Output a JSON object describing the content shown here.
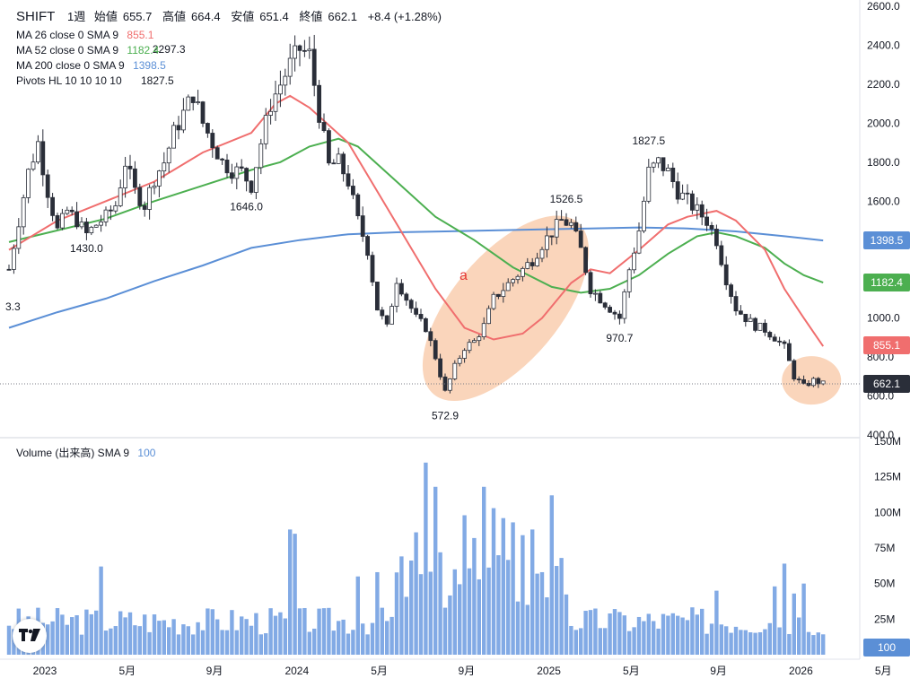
{
  "header": {
    "symbol": "SHIFT",
    "interval": "1週",
    "open_label": "始値",
    "open": "655.7",
    "high_label": "高値",
    "high": "664.4",
    "low_label": "安値",
    "low": "651.4",
    "close_label": "終値",
    "close": "662.1",
    "change": "+8.4 (+1.28%)"
  },
  "indicators": [
    {
      "label": "MA 26 close 0 SMA 9",
      "value": "855.1",
      "color": "#f06e6e"
    },
    {
      "label": "MA 52 close 0 SMA 9",
      "value": "1182.4",
      "color": "#4caf50"
    },
    {
      "label": "MA 200 close 0 SMA 9",
      "value": "1398.5",
      "color": "#5b8fd6"
    },
    {
      "label": "Pivots HL 10 10 10 10",
      "value": "1827.5",
      "color": "#131722"
    }
  ],
  "volume_legend": {
    "label": "Volume (出来高) SMA 9",
    "value": "100",
    "color": "#5b8fd6"
  },
  "badges": [
    {
      "value": "1398.5",
      "color": "#5b8fd6",
      "price": 1398.5
    },
    {
      "value": "1182.4",
      "color": "#4caf50",
      "price": 1182.4
    },
    {
      "value": "855.1",
      "color": "#f06e6e",
      "price": 855.1
    },
    {
      "value": "662.1",
      "color": "#2a2e39",
      "price": 662.1
    }
  ],
  "volume_badge": {
    "value": "100",
    "color": "#5b8fd6"
  },
  "chart_data": {
    "type": "candlestick",
    "price_axis": {
      "ticks": [
        "2600.0",
        "2400.0",
        "2200.0",
        "2000.0",
        "1800.0",
        "1600.0",
        "1400.0",
        "1200.0",
        "1000.0",
        "800.0",
        "600.0",
        "400.0"
      ],
      "range": [
        400,
        2600
      ]
    },
    "volume_axis": {
      "ticks": [
        "150M",
        "125M",
        "100M",
        "75M",
        "50M",
        "25M"
      ],
      "range": [
        0,
        150
      ]
    },
    "time_axis": {
      "labels": [
        "2023",
        "5月",
        "9月",
        "2024",
        "5月",
        "9月",
        "2025",
        "5月",
        "9月",
        "2026",
        "5月"
      ],
      "label_weeks": [
        0,
        17,
        35,
        52,
        69,
        87,
        104,
        121,
        139,
        156,
        173
      ]
    },
    "pivot_labels": [
      {
        "text": "2297.3",
        "week": 33,
        "price": 2297.3,
        "pos": "above"
      },
      {
        "text": "1430.0",
        "week": 16,
        "price": 1430.0,
        "pos": "below"
      },
      {
        "text": "1646.0",
        "week": 49,
        "price": 1646.0,
        "pos": "below"
      },
      {
        "text": "3.3",
        "week": -1,
        "price": 1300,
        "pos": "below"
      },
      {
        "text": "1526.5",
        "week": 115,
        "price": 1526.5,
        "pos": "above"
      },
      {
        "text": "572.9",
        "week": 90,
        "price": 572.9,
        "pos": "below"
      },
      {
        "text": "970.7",
        "week": 126,
        "price": 970.7,
        "pos": "below"
      },
      {
        "text": "1827.5",
        "week": 132,
        "price": 1827.5,
        "pos": "above"
      }
    ],
    "annotation_label": "a",
    "close_path": [
      [
        0,
        1250
      ],
      [
        2,
        1500
      ],
      [
        4,
        1750
      ],
      [
        6,
        1900
      ],
      [
        8,
        1650
      ],
      [
        10,
        1450
      ],
      [
        12,
        1550
      ],
      [
        14,
        1500
      ],
      [
        16,
        1430
      ],
      [
        18,
        1480
      ],
      [
        20,
        1520
      ],
      [
        22,
        1580
      ],
      [
        24,
        1800
      ],
      [
        26,
        1650
      ],
      [
        28,
        1580
      ],
      [
        30,
        1720
      ],
      [
        32,
        1800
      ],
      [
        34,
        1950
      ],
      [
        36,
        2050
      ],
      [
        38,
        2150
      ],
      [
        40,
        2000
      ],
      [
        42,
        1900
      ],
      [
        44,
        1800
      ],
      [
        46,
        1760
      ],
      [
        48,
        1750
      ],
      [
        50,
        1680
      ],
      [
        52,
        1900
      ],
      [
        54,
        2100
      ],
      [
        56,
        2200
      ],
      [
        58,
        2300
      ],
      [
        60,
        2380
      ],
      [
        62,
        2350
      ],
      [
        64,
        2050
      ],
      [
        66,
        1780
      ],
      [
        68,
        1800
      ],
      [
        70,
        1700
      ],
      [
        72,
        1500
      ],
      [
        74,
        1350
      ],
      [
        76,
        1050
      ],
      [
        78,
        950
      ],
      [
        80,
        1200
      ],
      [
        82,
        1100
      ],
      [
        84,
        1000
      ],
      [
        86,
        950
      ],
      [
        88,
        800
      ],
      [
        90,
        620
      ],
      [
        92,
        750
      ],
      [
        94,
        850
      ],
      [
        96,
        880
      ],
      [
        98,
        960
      ],
      [
        100,
        1100
      ],
      [
        102,
        1150
      ],
      [
        104,
        1200
      ],
      [
        106,
        1250
      ],
      [
        108,
        1300
      ],
      [
        110,
        1380
      ],
      [
        112,
        1440
      ],
      [
        114,
        1500
      ],
      [
        116,
        1480
      ],
      [
        118,
        1350
      ],
      [
        120,
        1150
      ],
      [
        122,
        1100
      ],
      [
        124,
        1050
      ],
      [
        126,
        1000
      ],
      [
        128,
        1250
      ],
      [
        130,
        1450
      ],
      [
        132,
        1750
      ],
      [
        134,
        1800
      ],
      [
        136,
        1750
      ],
      [
        138,
        1650
      ],
      [
        140,
        1600
      ],
      [
        142,
        1550
      ],
      [
        144,
        1500
      ],
      [
        146,
        1400
      ],
      [
        148,
        1200
      ],
      [
        150,
        1050
      ],
      [
        152,
        1000
      ],
      [
        154,
        960
      ],
      [
        156,
        940
      ],
      [
        158,
        900
      ],
      [
        160,
        850
      ],
      [
        162,
        700
      ],
      [
        164,
        650
      ],
      [
        166,
        680
      ],
      [
        168,
        662
      ]
    ],
    "ma26": [
      [
        0,
        1350
      ],
      [
        10,
        1500
      ],
      [
        20,
        1600
      ],
      [
        30,
        1700
      ],
      [
        40,
        1850
      ],
      [
        50,
        1950
      ],
      [
        55,
        2100
      ],
      [
        58,
        2140
      ],
      [
        62,
        2080
      ],
      [
        70,
        1900
      ],
      [
        76,
        1650
      ],
      [
        82,
        1400
      ],
      [
        88,
        1150
      ],
      [
        94,
        950
      ],
      [
        100,
        890
      ],
      [
        106,
        920
      ],
      [
        110,
        1000
      ],
      [
        116,
        1180
      ],
      [
        120,
        1250
      ],
      [
        124,
        1230
      ],
      [
        130,
        1350
      ],
      [
        136,
        1480
      ],
      [
        140,
        1520
      ],
      [
        146,
        1550
      ],
      [
        150,
        1500
      ],
      [
        156,
        1350
      ],
      [
        160,
        1150
      ],
      [
        164,
        1000
      ],
      [
        168,
        855
      ]
    ],
    "ma52": [
      [
        0,
        1390
      ],
      [
        10,
        1450
      ],
      [
        20,
        1510
      ],
      [
        30,
        1600
      ],
      [
        40,
        1680
      ],
      [
        50,
        1760
      ],
      [
        56,
        1800
      ],
      [
        62,
        1880
      ],
      [
        68,
        1920
      ],
      [
        72,
        1880
      ],
      [
        80,
        1700
      ],
      [
        88,
        1520
      ],
      [
        96,
        1400
      ],
      [
        104,
        1260
      ],
      [
        112,
        1160
      ],
      [
        118,
        1130
      ],
      [
        124,
        1150
      ],
      [
        130,
        1220
      ],
      [
        136,
        1330
      ],
      [
        142,
        1420
      ],
      [
        146,
        1440
      ],
      [
        150,
        1420
      ],
      [
        156,
        1360
      ],
      [
        160,
        1280
      ],
      [
        164,
        1220
      ],
      [
        168,
        1182
      ]
    ],
    "ma200": [
      [
        0,
        950
      ],
      [
        10,
        1030
      ],
      [
        20,
        1100
      ],
      [
        30,
        1190
      ],
      [
        40,
        1270
      ],
      [
        50,
        1360
      ],
      [
        60,
        1400
      ],
      [
        70,
        1430
      ],
      [
        80,
        1440
      ],
      [
        90,
        1445
      ],
      [
        100,
        1450
      ],
      [
        110,
        1455
      ],
      [
        120,
        1460
      ],
      [
        130,
        1465
      ],
      [
        140,
        1460
      ],
      [
        150,
        1445
      ],
      [
        160,
        1420
      ],
      [
        168,
        1398.5
      ]
    ],
    "volume_base": 25,
    "volume_spikes": [
      [
        19,
        62
      ],
      [
        58,
        88
      ],
      [
        59,
        85
      ],
      [
        72,
        55
      ],
      [
        76,
        58
      ],
      [
        84,
        86
      ],
      [
        86,
        135
      ],
      [
        88,
        118
      ],
      [
        92,
        60
      ],
      [
        94,
        98
      ],
      [
        96,
        82
      ],
      [
        98,
        118
      ],
      [
        100,
        103
      ],
      [
        102,
        96
      ],
      [
        104,
        93
      ],
      [
        106,
        84
      ],
      [
        108,
        88
      ],
      [
        110,
        58
      ],
      [
        112,
        112
      ],
      [
        114,
        68
      ],
      [
        126,
        30
      ],
      [
        146,
        45
      ],
      [
        158,
        48
      ],
      [
        160,
        64
      ],
      [
        162,
        43
      ],
      [
        164,
        50
      ]
    ]
  }
}
